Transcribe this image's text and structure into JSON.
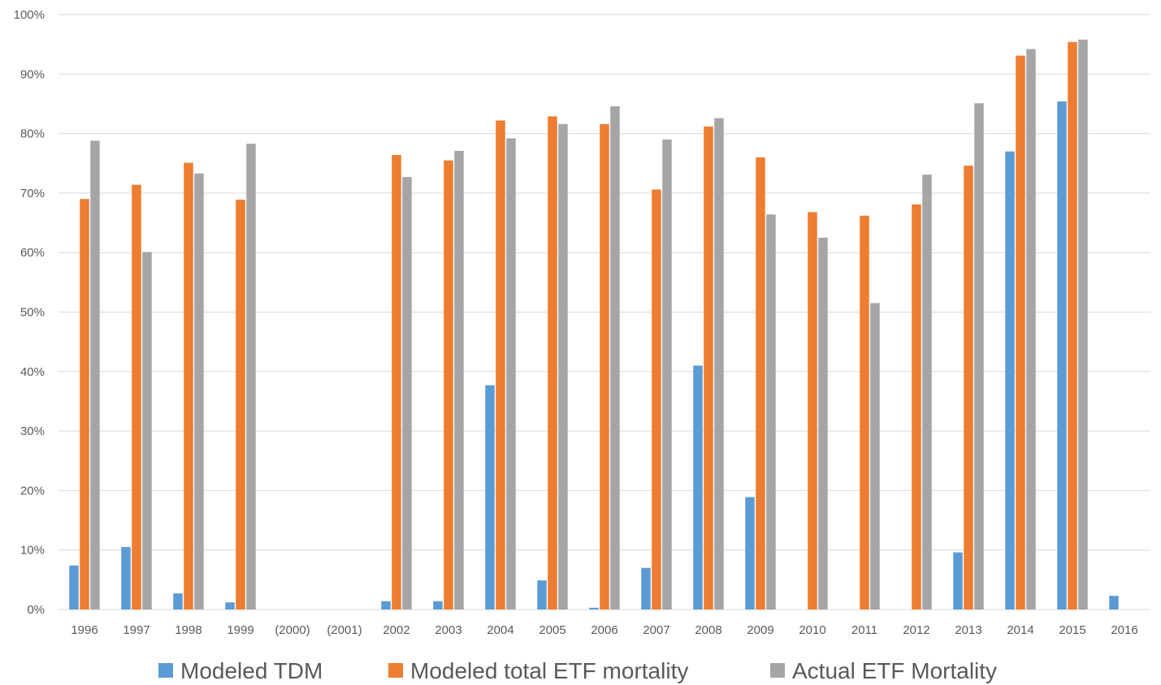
{
  "chart_data": {
    "type": "bar",
    "categories": [
      "1996",
      "1997",
      "1998",
      "1999",
      "(2000)",
      "(2001)",
      "2002",
      "2003",
      "2004",
      "2005",
      "2006",
      "2007",
      "2008",
      "2009",
      "2010",
      "2011",
      "2012",
      "2013",
      "2014",
      "2015",
      "2016"
    ],
    "series": [
      {
        "name": "Modeled TDM",
        "color": "#5B9BD5",
        "values": [
          7.4,
          10.5,
          2.7,
          1.2,
          null,
          null,
          1.4,
          1.4,
          37.7,
          4.9,
          0.3,
          7.0,
          41.0,
          18.9,
          null,
          null,
          null,
          9.6,
          77.0,
          85.4,
          2.3
        ]
      },
      {
        "name": "Modeled total ETF mortality",
        "color": "#ED7D31",
        "values": [
          69.0,
          71.4,
          75.1,
          68.9,
          null,
          null,
          76.4,
          75.5,
          82.2,
          82.9,
          81.6,
          70.6,
          81.2,
          76.0,
          66.8,
          66.2,
          68.1,
          74.6,
          93.1,
          95.4,
          null
        ]
      },
      {
        "name": "Actual ETF Mortality",
        "color": "#A5A5A5",
        "values": [
          78.8,
          60.1,
          73.3,
          78.3,
          null,
          null,
          72.7,
          77.1,
          79.2,
          81.6,
          84.6,
          79.0,
          82.6,
          66.4,
          62.5,
          51.5,
          73.1,
          85.1,
          94.2,
          95.8,
          null
        ]
      }
    ],
    "y_ticks": [
      "0%",
      "10%",
      "20%",
      "30%",
      "40%",
      "50%",
      "60%",
      "70%",
      "80%",
      "90%",
      "100%"
    ],
    "ylim": [
      0,
      100
    ],
    "grid": true,
    "legend_position": "bottom",
    "title": "",
    "xlabel": "",
    "ylabel": ""
  }
}
